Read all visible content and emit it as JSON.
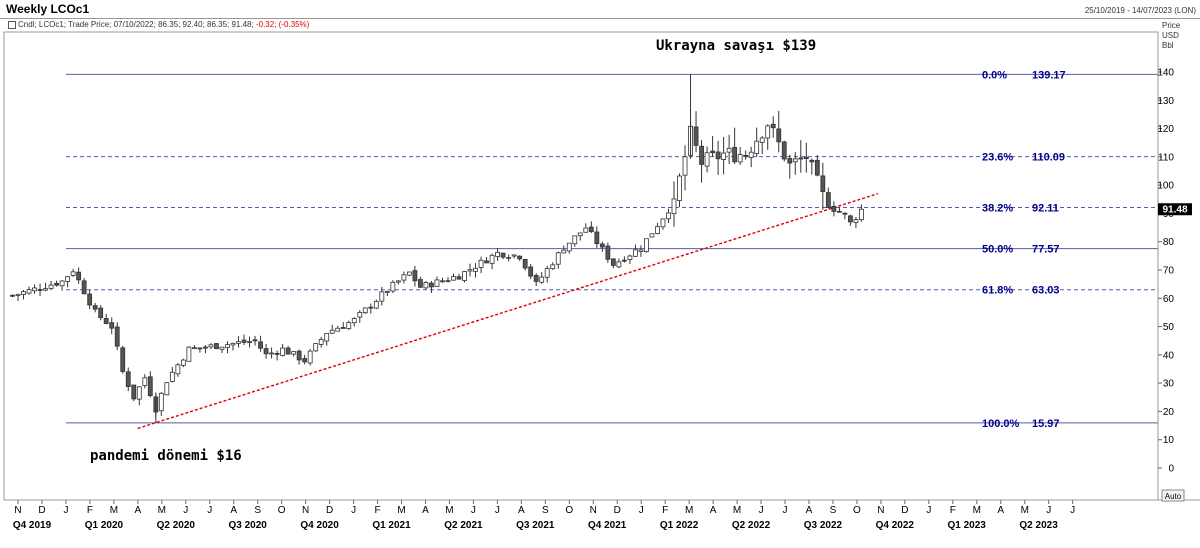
{
  "header": {
    "title": "Weekly LCOc1",
    "date_range": "25/10/2019 - 14/07/2023 (LON)",
    "legend_prefix": "Cndl; LCOc1; Trade Price; 07/10/2022; 86.35; 92.40; 86.35; 91.48;",
    "legend_change": "-0.32; (-0.35%)"
  },
  "axis_units": [
    "Price",
    "USD",
    "Bbl"
  ],
  "auto_label": "Auto",
  "colors": {
    "fib_blue": "#00008b",
    "grid_line": "#5a5aa8",
    "trend_red": "#e00000",
    "candle_up": "#ffffff",
    "candle_down": "#555555"
  },
  "chart_data": {
    "type": "candlestick",
    "title": "Weekly LCOc1",
    "ylim": [
      -5,
      145
    ],
    "y_ticks": [
      0,
      10,
      20,
      30,
      40,
      50,
      60,
      70,
      80,
      90,
      100,
      110,
      120,
      130,
      140
    ],
    "last_price": "91.48",
    "months": [
      "N",
      "D",
      "J",
      "F",
      "M",
      "A",
      "M",
      "J",
      "J",
      "A",
      "S",
      "O",
      "N",
      "D",
      "J",
      "F",
      "M",
      "A",
      "M",
      "J",
      "J",
      "A",
      "S",
      "O",
      "N",
      "D",
      "J",
      "F",
      "M",
      "A",
      "M",
      "J",
      "J",
      "A",
      "S",
      "O",
      "N",
      "D",
      "J",
      "F",
      "M",
      "A",
      "M",
      "J",
      "J"
    ],
    "quarters": [
      "Q4 2019",
      "Q1 2020",
      "Q2 2020",
      "Q3 2020",
      "Q4 2020",
      "Q1 2021",
      "Q2 2021",
      "Q3 2021",
      "Q4 2021",
      "Q1 2022",
      "Q2 2022",
      "Q3 2022",
      "Q4 2022",
      "Q1 2023",
      "Q2 2023"
    ],
    "fib_levels": [
      {
        "pct": "0.0%",
        "value": "139.17",
        "price": 139.17,
        "style": "solid"
      },
      {
        "pct": "23.6%",
        "value": "110.09",
        "price": 110.09,
        "style": "dashed"
      },
      {
        "pct": "38.2%",
        "value": "92.11",
        "price": 92.11,
        "style": "dashed"
      },
      {
        "pct": "50.0%",
        "value": "77.57",
        "price": 77.57,
        "style": "solid"
      },
      {
        "pct": "61.8%",
        "value": "63.03",
        "price": 63.03,
        "style": "dashed"
      },
      {
        "pct": "100.0%",
        "value": "15.97",
        "price": 15.97,
        "style": "solid"
      }
    ],
    "annotations": {
      "top": "Ukrayna savaşı $139",
      "bottom": "pandemi dönemi $16"
    },
    "trendline": {
      "from": [
        "2020-04-01",
        14
      ],
      "to": [
        "2022-10-28",
        97
      ]
    },
    "weekly_close_anchors": [
      [
        "2019-10-25",
        61
      ],
      [
        "2019-12-27",
        66
      ],
      [
        "2020-01-10",
        70
      ],
      [
        "2020-02-07",
        55
      ],
      [
        "2020-02-28",
        50
      ],
      [
        "2020-03-13",
        34
      ],
      [
        "2020-03-27",
        25
      ],
      [
        "2020-04-10",
        32
      ],
      [
        "2020-04-24",
        21
      ],
      [
        "2020-05-08",
        31
      ],
      [
        "2020-06-05",
        42
      ],
      [
        "2020-07-03",
        43
      ],
      [
        "2020-08-28",
        45
      ],
      [
        "2020-09-11",
        40
      ],
      [
        "2020-10-02",
        42
      ],
      [
        "2020-10-30",
        38
      ],
      [
        "2020-11-27",
        48
      ],
      [
        "2020-12-31",
        52
      ],
      [
        "2021-02-12",
        63
      ],
      [
        "2021-03-12",
        69
      ],
      [
        "2021-03-26",
        64
      ],
      [
        "2021-05-14",
        68
      ],
      [
        "2021-07-02",
        76
      ],
      [
        "2021-07-30",
        75
      ],
      [
        "2021-08-20",
        65
      ],
      [
        "2021-09-24",
        78
      ],
      [
        "2021-10-22",
        85
      ],
      [
        "2021-11-26",
        72
      ],
      [
        "2021-12-31",
        78
      ],
      [
        "2022-02-11",
        94
      ],
      [
        "2022-03-04",
        118
      ],
      [
        "2022-03-18",
        108
      ],
      [
        "2022-04-15",
        111
      ],
      [
        "2022-05-13",
        111
      ],
      [
        "2022-06-10",
        122
      ],
      [
        "2022-07-08",
        107
      ],
      [
        "2022-07-29",
        110
      ],
      [
        "2022-08-19",
        96
      ],
      [
        "2022-09-02",
        93
      ],
      [
        "2022-09-23",
        86
      ],
      [
        "2022-10-07",
        91.48
      ]
    ]
  }
}
